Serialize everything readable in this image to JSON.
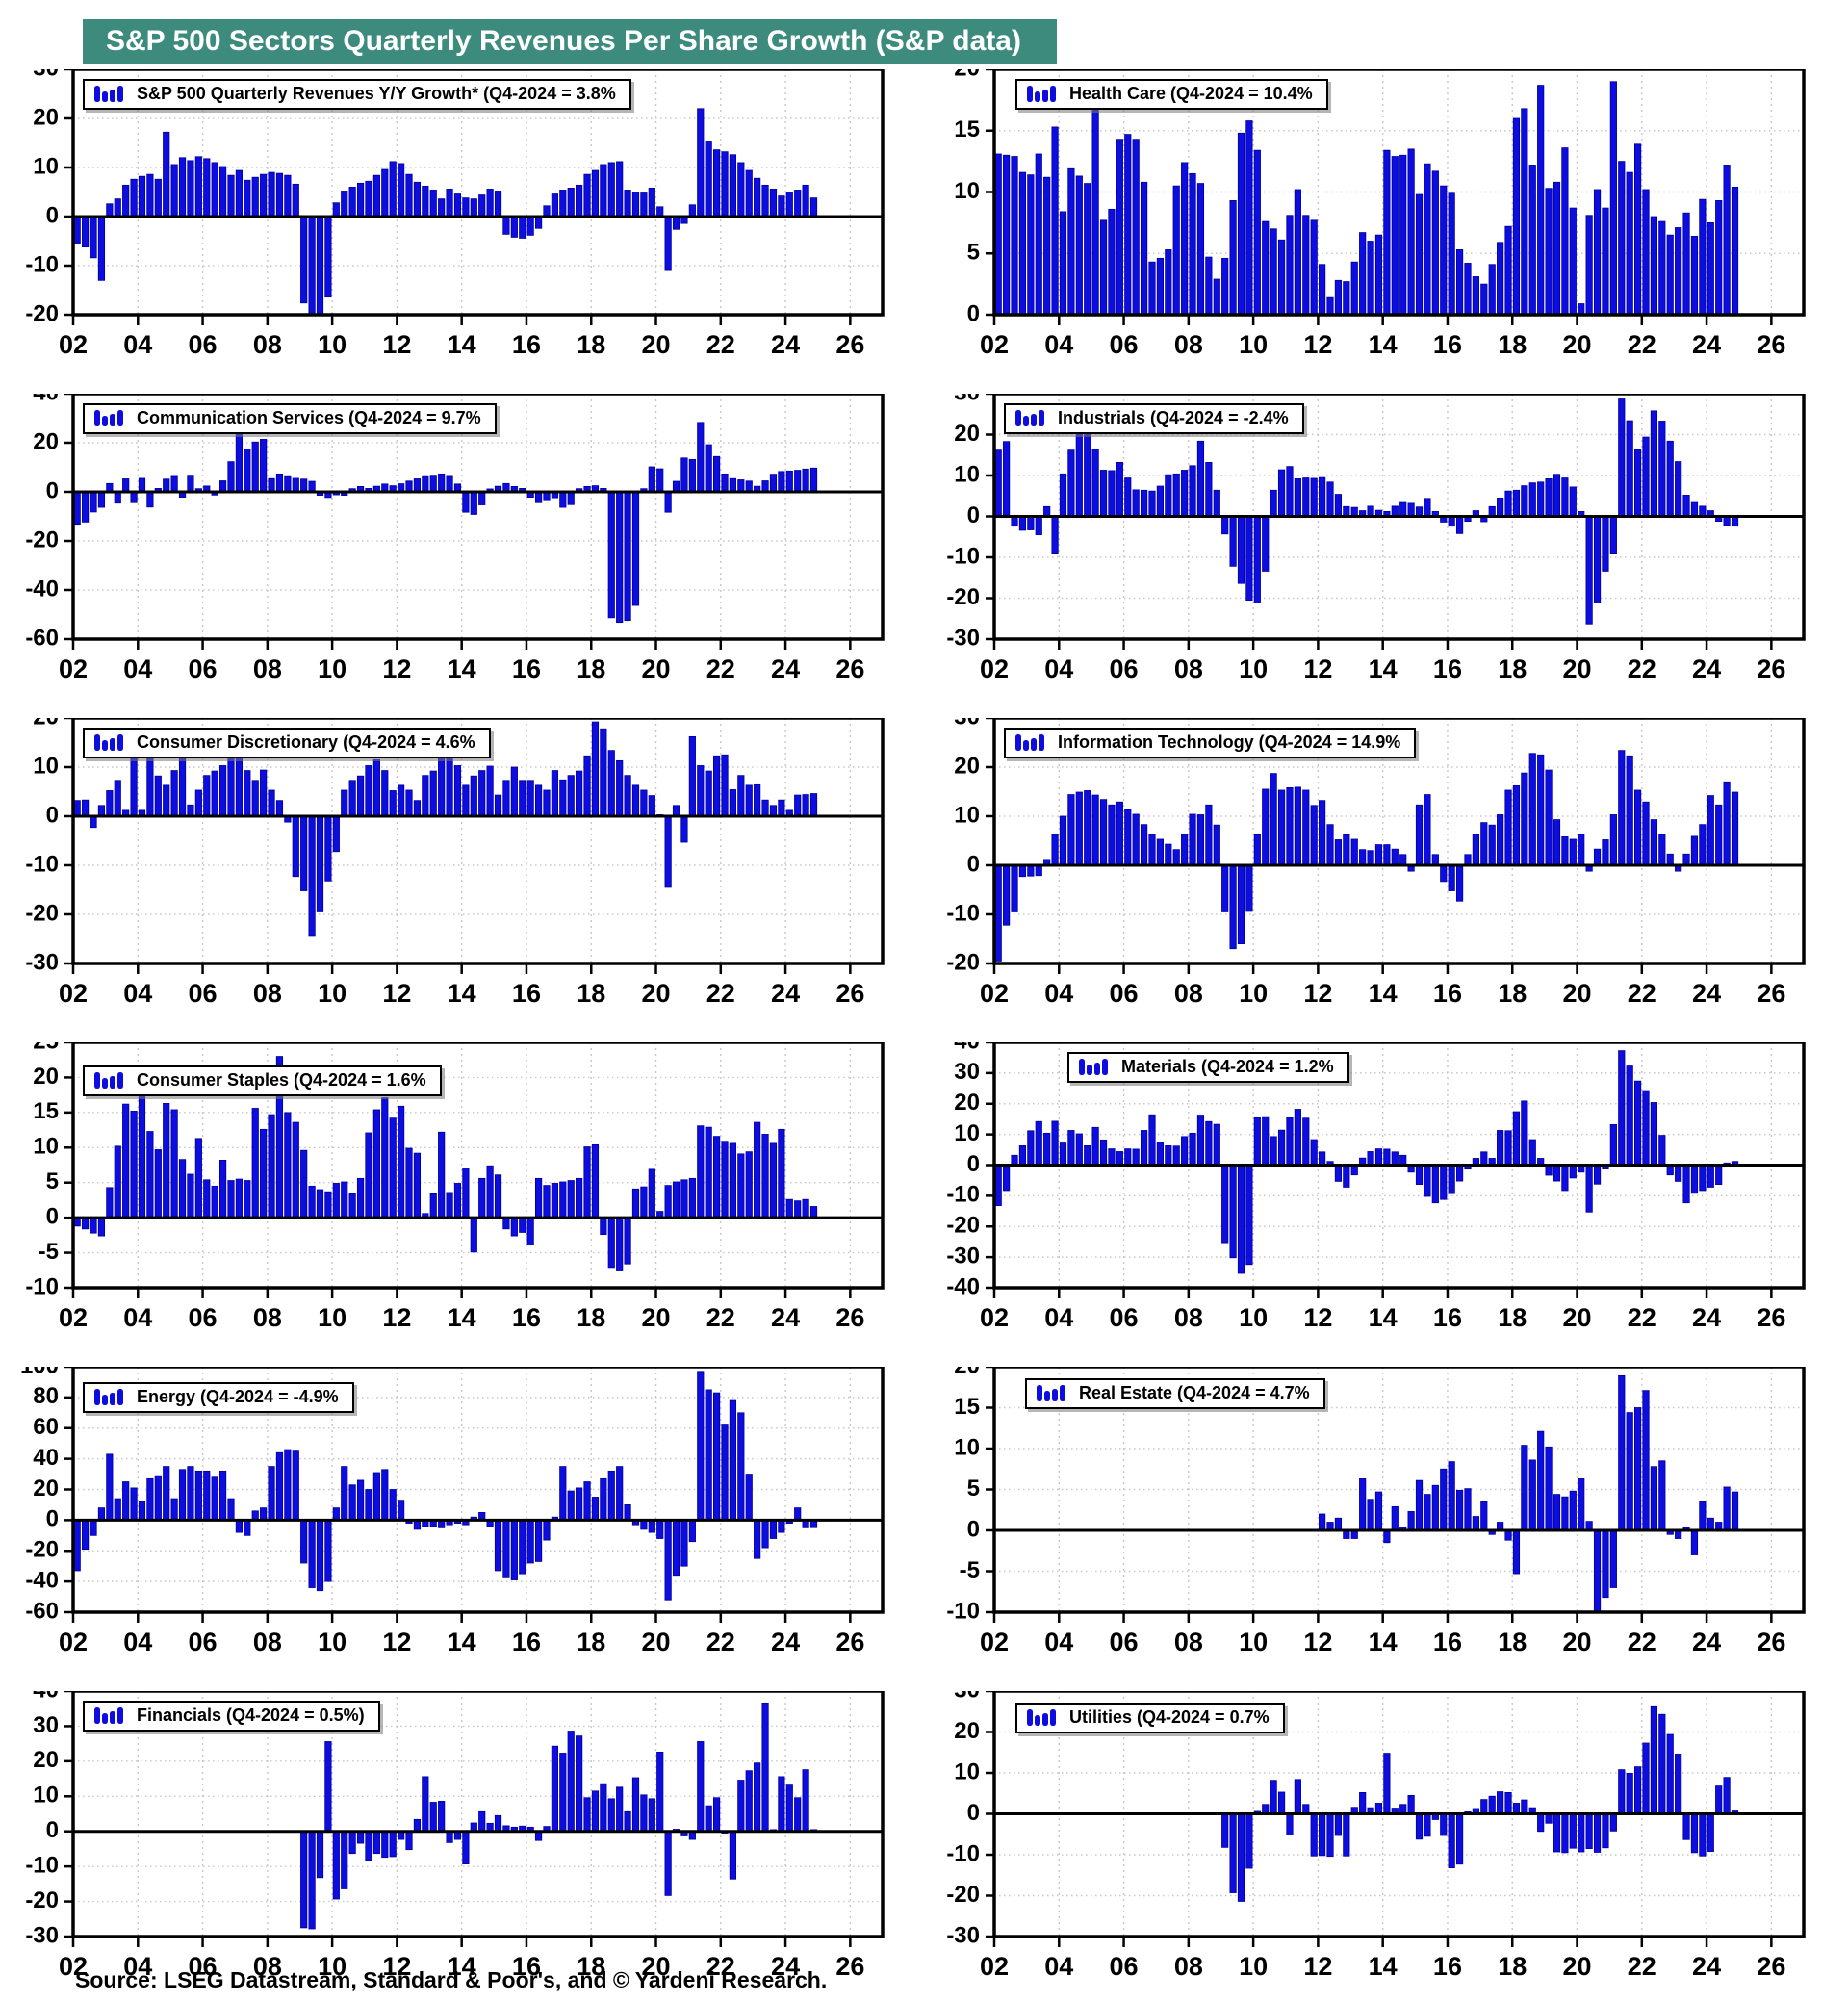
{
  "page_title": "S&P 500 Sectors Quarterly Revenues Per Share Growth (S&P data)",
  "source_note": "Source: LSEG Datastream, Standard & Poor's, and © Yardeni Research.",
  "colors": {
    "title_bg": "#3d8b7d",
    "title_text": "#ffffff",
    "bar_fill": "#0d0de0",
    "bar_edge": "#000099",
    "grid": "#c8c8c8",
    "axis": "#000000",
    "plot_bg": "#ffffff"
  },
  "x_axis": {
    "start": 2002,
    "end": 2027,
    "tick_labels": [
      "02",
      "04",
      "06",
      "08",
      "10",
      "12",
      "14",
      "16",
      "18",
      "20",
      "22",
      "24",
      "26"
    ]
  },
  "chart_data": [
    {
      "id": "sp500",
      "type": "bar",
      "legend": "S&P 500 Quarterly Revenues Y/Y Growth* (Q4-2024 = 3.8%",
      "ylim": [
        -20,
        30
      ],
      "ytick_step": 10,
      "start_year": 2002,
      "values": [
        -5.4,
        -6.2,
        -8.4,
        -13.0,
        2.6,
        3.6,
        6.4,
        7.6,
        8.2,
        8.6,
        7.6,
        17.2,
        10.6,
        12.0,
        11.4,
        12.2,
        11.8,
        11.0,
        10.2,
        8.4,
        9.4,
        7.4,
        8.0,
        8.6,
        9.0,
        8.8,
        8.4,
        6.6,
        -17.6,
        -19.6,
        -20.0,
        -16.4,
        2.8,
        5.2,
        6.0,
        6.8,
        7.2,
        8.4,
        9.6,
        11.2,
        10.8,
        8.6,
        7.0,
        6.2,
        5.4,
        3.6,
        5.6,
        4.6,
        3.8,
        3.6,
        4.4,
        5.6,
        5.2,
        -3.6,
        -4.2,
        -4.4,
        -3.8,
        -2.4,
        2.2,
        4.6,
        5.4,
        5.8,
        6.4,
        8.6,
        9.4,
        10.6,
        11.0,
        11.2,
        5.4,
        5.0,
        4.8,
        5.8,
        2.0,
        -11.0,
        -2.6,
        -1.4,
        2.4,
        22.0,
        15.2,
        13.6,
        13.2,
        12.6,
        11.0,
        9.4,
        7.8,
        6.4,
        5.6,
        4.2,
        5.0,
        5.4,
        6.4,
        3.8
      ]
    },
    {
      "id": "health-care",
      "type": "bar",
      "legend": "Health Care (Q4-2024 = 10.4%",
      "ylim": [
        0,
        20
      ],
      "ytick_step": 5,
      "start_year": 2002,
      "values": [
        13.1,
        13.0,
        12.9,
        11.6,
        11.4,
        13.1,
        11.2,
        15.3,
        8.4,
        11.9,
        11.3,
        10.7,
        16.8,
        7.7,
        8.6,
        14.3,
        14.7,
        14.3,
        10.8,
        4.3,
        4.6,
        5.3,
        10.5,
        12.4,
        11.5,
        10.7,
        4.7,
        2.9,
        4.6,
        9.3,
        14.8,
        15.8,
        13.4,
        7.6,
        7.0,
        6.1,
        8.1,
        10.2,
        8.1,
        7.7,
        4.1,
        1.4,
        2.8,
        2.7,
        4.3,
        6.7,
        6.0,
        6.5,
        13.4,
        12.9,
        13.0,
        13.5,
        9.8,
        12.3,
        11.7,
        10.5,
        9.9,
        5.3,
        4.2,
        3.1,
        2.5,
        4.1,
        5.9,
        7.2,
        16.0,
        16.8,
        12.2,
        18.7,
        10.3,
        10.8,
        13.6,
        8.7,
        0.9,
        8.1,
        10.2,
        8.7,
        19.0,
        12.5,
        11.6,
        13.9,
        10.2,
        8.0,
        7.6,
        6.5,
        7.1,
        8.3,
        6.4,
        9.4,
        7.5,
        9.3,
        12.2,
        10.4
      ]
    },
    {
      "id": "communication-services",
      "type": "bar",
      "legend": "Communication Services (Q4-2024 = 9.7%",
      "ylim": [
        -60,
        40
      ],
      "ytick_step": 20,
      "start_year": 2002,
      "values": [
        -13.2,
        -12.3,
        -8.2,
        -6.3,
        3.4,
        -4.6,
        5.3,
        -4.4,
        5.5,
        -6.2,
        1.4,
        5.2,
        6.3,
        -2.2,
        6.4,
        1.3,
        2.4,
        -1.3,
        4.5,
        12.3,
        30.2,
        17.4,
        20.3,
        21.4,
        5.4,
        7.3,
        6.2,
        5.5,
        5.2,
        4.3,
        -1.4,
        -2.3,
        -1.2,
        -1.4,
        1.3,
        2.2,
        1.4,
        2.3,
        3.2,
        2.5,
        3.3,
        4.4,
        5.3,
        6.2,
        6.4,
        7.3,
        6.3,
        3.2,
        -8.3,
        -9.2,
        -5.3,
        1.2,
        2.3,
        3.4,
        2.2,
        1.4,
        -2.2,
        -4.4,
        -3.2,
        -2.4,
        -6.3,
        -5.2,
        1.3,
        2.2,
        2.5,
        1.4,
        -51.3,
        -53.2,
        -52.4,
        -46.3,
        1.3,
        10.2,
        9.4,
        -8.3,
        4.3,
        13.8,
        13.2,
        28.3,
        19.2,
        14.4,
        7.3,
        5.4,
        4.9,
        4.4,
        2.3,
        4.5,
        7.2,
        8.3,
        8.5,
        8.8,
        9.3,
        9.7
      ]
    },
    {
      "id": "industrials",
      "type": "bar",
      "legend": "Industrials (Q4-2024 = -2.4%",
      "ylim": [
        -30,
        30
      ],
      "ytick_step": 10,
      "start_year": 2002,
      "values": [
        16.2,
        18.3,
        -2.4,
        -3.4,
        -3.3,
        -4.5,
        2.4,
        -9.2,
        10.4,
        16.2,
        27.3,
        20.4,
        16.4,
        11.3,
        11.2,
        13.2,
        9.4,
        6.5,
        6.4,
        6.2,
        7.4,
        10.2,
        10.4,
        11.3,
        12.4,
        18.4,
        13.2,
        6.4,
        -4.3,
        -12.2,
        -16.4,
        -20.5,
        -21.2,
        -13.4,
        6.4,
        11.4,
        12.2,
        9.2,
        9.4,
        9.3,
        9.5,
        8.4,
        5.4,
        2.4,
        2.2,
        1.4,
        2.5,
        1.5,
        1.2,
        2.5,
        3.4,
        3.2,
        2.3,
        4.4,
        1.2,
        -1.4,
        -2.4,
        -4.2,
        -1.2,
        1.4,
        -1.3,
        2.4,
        4.5,
        6.2,
        6.4,
        7.5,
        8.2,
        8.4,
        9.2,
        10.3,
        9.4,
        7.2,
        1.2,
        -26.3,
        -21.2,
        -13.4,
        -9.2,
        28.7,
        23.4,
        16.3,
        19.4,
        25.8,
        23.3,
        18.4,
        13.4,
        5.2,
        3.4,
        2.5,
        1.4,
        -1.2,
        -2.2,
        -2.4
      ]
    },
    {
      "id": "consumer-discretionary",
      "type": "bar",
      "legend": "Consumer Discretionary (Q4-2024 = 4.6%",
      "ylim": [
        -30,
        20
      ],
      "ytick_step": 10,
      "start_year": 2002,
      "values": [
        3.2,
        3.3,
        -2.3,
        2.2,
        5.2,
        7.3,
        1.2,
        13.2,
        1.2,
        17.0,
        8.2,
        6.3,
        9.3,
        13.3,
        2.3,
        5.3,
        8.3,
        9.2,
        10.3,
        12.3,
        12.5,
        9.3,
        7.3,
        9.4,
        5.3,
        3.2,
        -1.2,
        -12.3,
        -15.2,
        -24.3,
        -19.5,
        -13.2,
        -7.2,
        5.3,
        7.3,
        8.2,
        10.3,
        11.5,
        9.3,
        5.2,
        6.3,
        5.3,
        3.2,
        8.3,
        9.2,
        15.0,
        14.3,
        10.3,
        6.3,
        8.2,
        9.3,
        10.2,
        4.3,
        7.3,
        10.0,
        7.3,
        7.3,
        6.3,
        5.3,
        9.3,
        7.4,
        8.3,
        9.2,
        12.3,
        19.2,
        17.8,
        13.4,
        11.3,
        8.3,
        6.3,
        5.3,
        4.2,
        0.3,
        -14.5,
        2.2,
        -5.3,
        16.2,
        10.3,
        9.2,
        12.3,
        12.5,
        5.4,
        8.3,
        6.3,
        6.4,
        3.3,
        2.2,
        3.3,
        1.2,
        4.3,
        4.4,
        4.6
      ]
    },
    {
      "id": "information-technology",
      "type": "bar",
      "legend": "Information Technology (Q4-2024 = 14.9%",
      "ylim": [
        -20,
        30
      ],
      "ytick_step": 10,
      "start_year": 2002,
      "values": [
        -19.5,
        -12.2,
        -9.5,
        -2.3,
        -2.2,
        -2.1,
        1.2,
        6.3,
        10.0,
        14.4,
        14.9,
        15.2,
        14.3,
        13.4,
        12.3,
        12.9,
        11.3,
        10.4,
        8.3,
        6.3,
        5.3,
        4.3,
        3.2,
        6.3,
        10.4,
        10.3,
        12.3,
        8.2,
        -9.5,
        -17.0,
        -16.0,
        -9.4,
        6.2,
        15.5,
        18.7,
        15.3,
        15.8,
        15.9,
        15.3,
        12.2,
        13.2,
        8.3,
        5.2,
        6.2,
        5.3,
        3.2,
        3.0,
        4.2,
        4.2,
        3.3,
        2.2,
        -1.2,
        12.3,
        14.4,
        2.2,
        -3.3,
        -5.2,
        -7.3,
        2.2,
        6.3,
        8.7,
        8.2,
        10.3,
        15.3,
        16.2,
        18.8,
        22.8,
        22.5,
        19.4,
        9.3,
        5.8,
        5.3,
        6.3,
        -1.2,
        3.3,
        5.2,
        10.3,
        23.4,
        22.3,
        15.3,
        12.9,
        9.3,
        6.3,
        2.3,
        -1.2,
        2.3,
        5.9,
        8.3,
        14.2,
        12.3,
        17.0,
        14.9
      ]
    },
    {
      "id": "consumer-staples",
      "type": "bar",
      "legend": "Consumer Staples (Q4-2024 = 1.6%",
      "ylim": [
        -10,
        25
      ],
      "ytick_step": 5,
      "start_year": 2002,
      "values": [
        -1.2,
        -1.6,
        -2.2,
        -2.6,
        4.3,
        10.2,
        16.2,
        15.2,
        19.8,
        12.3,
        9.7,
        16.3,
        15.4,
        8.3,
        6.2,
        11.3,
        5.4,
        4.5,
        8.2,
        5.3,
        5.5,
        5.3,
        15.6,
        12.6,
        14.7,
        23.0,
        15.0,
        13.6,
        9.6,
        4.5,
        4.0,
        3.7,
        4.9,
        5.1,
        3.4,
        5.6,
        12.1,
        15.4,
        17.1,
        14.2,
        15.9,
        9.9,
        9.2,
        0.6,
        3.4,
        12.2,
        3.6,
        4.9,
        7.1,
        -4.9,
        5.6,
        7.4,
        6.1,
        -1.6,
        -2.6,
        -2.1,
        -3.9,
        5.6,
        4.6,
        4.9,
        5.1,
        5.3,
        5.6,
        10.1,
        10.4,
        -2.4,
        -7.1,
        -7.6,
        -6.6,
        4.1,
        4.4,
        6.9,
        0.9,
        4.6,
        5.1,
        5.4,
        5.6,
        13.1,
        12.9,
        11.6,
        10.9,
        10.6,
        9.1,
        9.4,
        13.6,
        11.9,
        10.6,
        12.6,
        2.6,
        2.4,
        2.6,
        1.6
      ]
    },
    {
      "id": "materials",
      "type": "bar",
      "legend": "Materials (Q4-2024 = 1.2%",
      "ylim": [
        -40,
        40
      ],
      "ytick_step": 10,
      "start_year": 2002,
      "values": [
        -13.2,
        -8.3,
        3.2,
        6.3,
        11.2,
        14.2,
        10.4,
        14.3,
        7.2,
        11.3,
        10.2,
        6.3,
        12.3,
        8.2,
        5.3,
        4.4,
        5.3,
        5.2,
        11.3,
        16.4,
        7.4,
        6.3,
        6.2,
        9.3,
        10.4,
        16.3,
        14.2,
        13.3,
        -25.3,
        -30.2,
        -35.3,
        -32.4,
        15.4,
        15.8,
        9.3,
        11.4,
        15.5,
        18.2,
        15.3,
        8.3,
        4.3,
        1.2,
        -5.3,
        -7.2,
        -3.2,
        2.3,
        4.4,
        5.3,
        5.2,
        4.3,
        3.2,
        -2.3,
        -6.3,
        -10.2,
        -12.3,
        -11.2,
        -9.3,
        -5.2,
        -1.3,
        2.2,
        4.3,
        2.2,
        11.3,
        11.2,
        17.4,
        20.9,
        8.3,
        2.2,
        -3.3,
        -5.2,
        -8.3,
        -4.2,
        -2.3,
        -15.3,
        -6.2,
        -1.3,
        13.2,
        37.3,
        32.3,
        27.4,
        24.3,
        20.4,
        9.7,
        -3.2,
        -5.3,
        -12.3,
        -9.2,
        -8.3,
        -7.2,
        -6.3,
        0.7,
        1.2
      ]
    },
    {
      "id": "energy",
      "type": "bar",
      "legend": "Energy (Q4-2024 = -4.9%",
      "ylim": [
        -60,
        100
      ],
      "ytick_step": 20,
      "start_year": 2002,
      "values": [
        -33,
        -19,
        -10,
        8,
        43,
        14,
        25,
        21,
        12,
        27,
        29,
        35,
        14,
        33,
        35,
        32,
        32,
        28,
        32,
        14,
        -8,
        -10,
        6,
        8,
        35,
        44,
        46,
        45,
        -28,
        -44,
        -46,
        -40,
        8,
        35,
        23,
        26,
        20,
        31,
        33,
        20,
        13,
        -2,
        -6,
        -4,
        -4,
        -5,
        -3,
        -2,
        -3,
        2,
        5,
        -4,
        -33,
        -37,
        -39,
        -35,
        -28,
        -27,
        -13,
        2,
        35,
        19,
        21,
        25,
        15,
        27,
        32,
        35,
        10,
        -3,
        -6,
        -8,
        -12,
        -52,
        -36,
        -30,
        -14,
        97,
        85,
        83,
        62,
        78,
        70,
        30,
        -25,
        -18,
        -12,
        -8,
        -2,
        8,
        -5,
        -4.9
      ]
    },
    {
      "id": "real-estate",
      "type": "bar",
      "legend": "Real Estate (Q4-2024 = 4.7%",
      "ylim": [
        -10,
        20
      ],
      "ytick_step": 5,
      "start_year": 2012,
      "values": [
        2.0,
        1.0,
        1.5,
        -1.0,
        -1.0,
        6.3,
        3.8,
        4.7,
        -1.5,
        2.9,
        0.4,
        2.3,
        6.1,
        4.4,
        5.5,
        7.5,
        8.4,
        4.9,
        5.1,
        1.7,
        3.5,
        -0.5,
        1.0,
        -1.2,
        -5.3,
        10.4,
        8.6,
        12.1,
        10.2,
        4.4,
        4.1,
        4.8,
        6.3,
        1.1,
        -10.3,
        -8.2,
        -7.0,
        18.9,
        14.4,
        15.0,
        17.1,
        7.8,
        8.5,
        -0.5,
        -1.0,
        0.3,
        -3.0,
        3.5,
        1.5,
        1.0,
        5.3,
        4.7
      ]
    },
    {
      "id": "financials",
      "type": "bar",
      "legend": "Financials (Q4-2024 = 0.5%)",
      "ylim": [
        -30,
        40
      ],
      "ytick_step": 10,
      "start_year": 2009,
      "values": [
        -27.5,
        -27.8,
        -13.2,
        25.6,
        -19.3,
        -16.4,
        -6.3,
        -3.4,
        -8.2,
        -6.3,
        -7.4,
        -7.2,
        -2.3,
        -5.2,
        3.4,
        15.6,
        8.3,
        8.6,
        -3.2,
        -2.3,
        -9.3,
        2.4,
        5.6,
        2.3,
        4.5,
        1.6,
        1.2,
        1.5,
        1.2,
        -2.6,
        1.4,
        24.3,
        22.3,
        28.6,
        27.2,
        9.6,
        11.5,
        13.6,
        9.3,
        12.6,
        5.6,
        15.3,
        10.4,
        9.3,
        22.6,
        -18.3,
        0.6,
        -1.3,
        -2.3,
        25.6,
        7.3,
        9.6,
        -0.5,
        -13.6,
        14.6,
        17.3,
        19.5,
        36.6,
        0.5,
        15.6,
        13.2,
        9.6,
        17.6,
        0.5
      ]
    },
    {
      "id": "utilities",
      "type": "bar",
      "legend": "Utilities (Q4-2024 = 0.7%",
      "ylim": [
        -30,
        30
      ],
      "ytick_step": 10,
      "start_year": 2009,
      "values": [
        -8.2,
        -19.3,
        -21.4,
        -13.3,
        0.6,
        2.3,
        8.2,
        5.3,
        -5.2,
        8.4,
        2.3,
        -10.3,
        -10.2,
        -10.4,
        -5.3,
        -10.3,
        1.6,
        5.2,
        1.5,
        2.6,
        14.8,
        1.4,
        2.3,
        4.5,
        -6.2,
        -5.5,
        -1.4,
        -5.3,
        -13.2,
        -12.3,
        0.5,
        1.3,
        3.5,
        4.3,
        5.4,
        5.2,
        2.6,
        3.4,
        1.5,
        -4.3,
        -2.3,
        -9.3,
        -9.5,
        -8.4,
        -9.3,
        -8.5,
        -9.4,
        -8.3,
        -4.2,
        10.8,
        9.9,
        11.5,
        17.3,
        26.4,
        24.3,
        19.4,
        14.6,
        -6.3,
        -9.5,
        -10.3,
        -9.2,
        6.8,
        8.9,
        0.7
      ]
    }
  ]
}
